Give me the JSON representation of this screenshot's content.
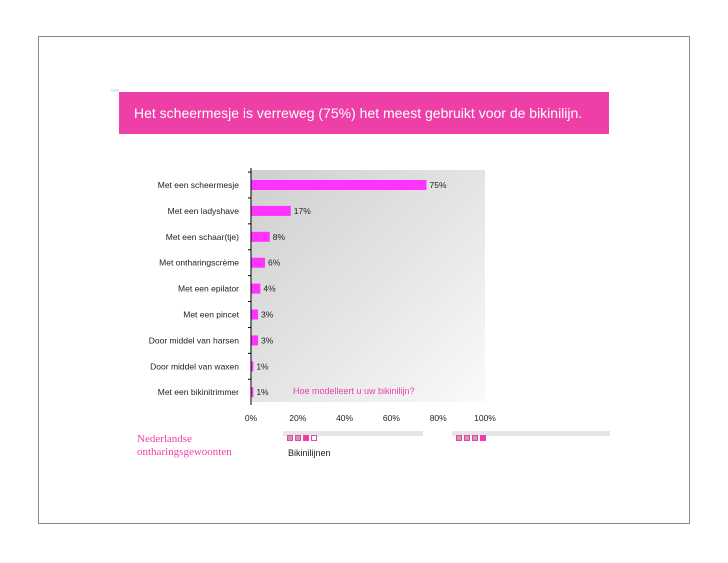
{
  "title": "Het scheermesje is verreweg (75%) het meest gebruikt voor de bikinilijn.",
  "footer": {
    "org_line1": "Nederlandse",
    "org_line2": "ontharingsgewoonten",
    "label": "Bikinilijnen"
  },
  "colors": {
    "accent": "#ee3fa8",
    "bar": "#ff33ff"
  },
  "chart_data": {
    "type": "bar",
    "orientation": "horizontal",
    "question": "Hoe modelleert u uw bikinilijn?",
    "categories": [
      "Met een scheermesje",
      "Met een ladyshave",
      "Met een schaar(tje)",
      "Met ontharingscrème",
      "Met een epilator",
      "Met een pincet",
      "Door middel van harsen",
      "Door middel van waxen",
      "Met een bikinitrimmer"
    ],
    "values": [
      75,
      17,
      8,
      6,
      4,
      3,
      3,
      1,
      1
    ],
    "value_labels": [
      "75%",
      "17%",
      "8%",
      "6%",
      "4%",
      "3%",
      "3%",
      "1%",
      "1%"
    ],
    "xlim": [
      0,
      100
    ],
    "x_ticks": [
      "0%",
      "20%",
      "40%",
      "60%",
      "80%",
      "100%"
    ],
    "grid": false
  }
}
